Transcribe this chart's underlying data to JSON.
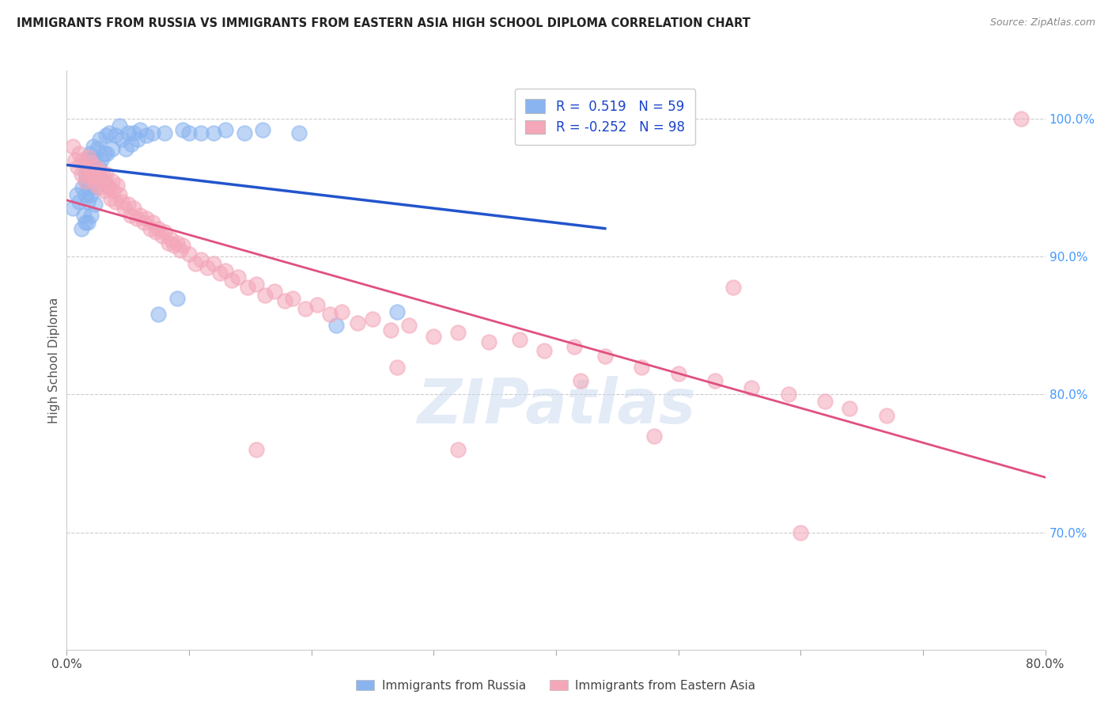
{
  "title": "IMMIGRANTS FROM RUSSIA VS IMMIGRANTS FROM EASTERN ASIA HIGH SCHOOL DIPLOMA CORRELATION CHART",
  "source": "Source: ZipAtlas.com",
  "ylabel": "High School Diploma",
  "legend_label_blue": "Immigrants from Russia",
  "legend_label_pink": "Immigrants from Eastern Asia",
  "R_blue": 0.519,
  "N_blue": 59,
  "R_pink": -0.252,
  "N_pink": 98,
  "xlim": [
    0.0,
    0.8
  ],
  "ylim": [
    0.615,
    1.035
  ],
  "right_yticks": [
    1.0,
    0.9,
    0.8,
    0.7
  ],
  "right_yticklabels": [
    "100.0%",
    "90.0%",
    "80.0%",
    "70.0%"
  ],
  "xticks": [
    0.0,
    0.1,
    0.2,
    0.3,
    0.4,
    0.5,
    0.6,
    0.7,
    0.8
  ],
  "xticklabels": [
    "0.0%",
    "",
    "",
    "",
    "",
    "",
    "",
    "",
    "80.0%"
  ],
  "watermark": "ZIPatlas",
  "blue_color": "#8ab4f0",
  "pink_color": "#f4a7b9",
  "blue_line_color": "#2255cc",
  "pink_line_color": "#e05080",
  "blue_scatter_x": [
    0.005,
    0.008,
    0.01,
    0.012,
    0.013,
    0.014,
    0.015,
    0.015,
    0.015,
    0.016,
    0.016,
    0.017,
    0.017,
    0.018,
    0.018,
    0.019,
    0.019,
    0.02,
    0.02,
    0.021,
    0.021,
    0.022,
    0.022,
    0.023,
    0.023,
    0.025,
    0.026,
    0.027,
    0.028,
    0.03,
    0.031,
    0.032,
    0.033,
    0.035,
    0.037,
    0.04,
    0.043,
    0.045,
    0.048,
    0.05,
    0.053,
    0.055,
    0.058,
    0.06,
    0.065,
    0.07,
    0.075,
    0.08,
    0.09,
    0.095,
    0.1,
    0.11,
    0.12,
    0.13,
    0.145,
    0.16,
    0.19,
    0.22,
    0.27
  ],
  "blue_scatter_y": [
    0.935,
    0.945,
    0.94,
    0.92,
    0.95,
    0.93,
    0.96,
    0.945,
    0.925,
    0.97,
    0.955,
    0.94,
    0.925,
    0.965,
    0.95,
    0.975,
    0.96,
    0.945,
    0.93,
    0.97,
    0.958,
    0.98,
    0.965,
    0.95,
    0.938,
    0.978,
    0.965,
    0.985,
    0.97,
    0.955,
    0.975,
    0.988,
    0.975,
    0.99,
    0.978,
    0.988,
    0.995,
    0.985,
    0.978,
    0.99,
    0.982,
    0.99,
    0.985,
    0.992,
    0.988,
    0.99,
    0.858,
    0.99,
    0.87,
    0.992,
    0.99,
    0.99,
    0.99,
    0.992,
    0.99,
    0.992,
    0.99,
    0.85,
    0.86
  ],
  "pink_scatter_x": [
    0.005,
    0.007,
    0.009,
    0.01,
    0.012,
    0.013,
    0.015,
    0.016,
    0.017,
    0.018,
    0.019,
    0.02,
    0.021,
    0.022,
    0.023,
    0.024,
    0.025,
    0.026,
    0.027,
    0.028,
    0.03,
    0.031,
    0.032,
    0.033,
    0.035,
    0.036,
    0.037,
    0.038,
    0.04,
    0.041,
    0.043,
    0.045,
    0.047,
    0.05,
    0.052,
    0.055,
    0.057,
    0.06,
    0.063,
    0.065,
    0.068,
    0.07,
    0.073,
    0.075,
    0.078,
    0.08,
    0.083,
    0.085,
    0.088,
    0.09,
    0.093,
    0.095,
    0.1,
    0.105,
    0.11,
    0.115,
    0.12,
    0.125,
    0.13,
    0.135,
    0.14,
    0.148,
    0.155,
    0.162,
    0.17,
    0.178,
    0.185,
    0.195,
    0.205,
    0.215,
    0.225,
    0.238,
    0.25,
    0.265,
    0.28,
    0.3,
    0.32,
    0.345,
    0.37,
    0.39,
    0.415,
    0.44,
    0.47,
    0.5,
    0.53,
    0.56,
    0.59,
    0.62,
    0.64,
    0.67,
    0.155,
    0.27,
    0.32,
    0.42,
    0.48,
    0.545,
    0.6,
    0.78
  ],
  "pink_scatter_y": [
    0.98,
    0.97,
    0.965,
    0.975,
    0.96,
    0.97,
    0.955,
    0.965,
    0.958,
    0.972,
    0.962,
    0.968,
    0.958,
    0.96,
    0.953,
    0.965,
    0.958,
    0.95,
    0.962,
    0.955,
    0.958,
    0.948,
    0.96,
    0.952,
    0.95,
    0.942,
    0.955,
    0.948,
    0.94,
    0.952,
    0.945,
    0.94,
    0.935,
    0.938,
    0.93,
    0.935,
    0.928,
    0.93,
    0.925,
    0.928,
    0.92,
    0.925,
    0.918,
    0.92,
    0.915,
    0.918,
    0.91,
    0.913,
    0.908,
    0.91,
    0.905,
    0.908,
    0.902,
    0.895,
    0.898,
    0.892,
    0.895,
    0.888,
    0.89,
    0.883,
    0.885,
    0.878,
    0.88,
    0.872,
    0.875,
    0.868,
    0.87,
    0.862,
    0.865,
    0.858,
    0.86,
    0.852,
    0.855,
    0.847,
    0.85,
    0.842,
    0.845,
    0.838,
    0.84,
    0.832,
    0.835,
    0.828,
    0.82,
    0.815,
    0.81,
    0.805,
    0.8,
    0.795,
    0.79,
    0.785,
    0.76,
    0.82,
    0.76,
    0.81,
    0.77,
    0.878,
    0.7,
    1.0
  ]
}
